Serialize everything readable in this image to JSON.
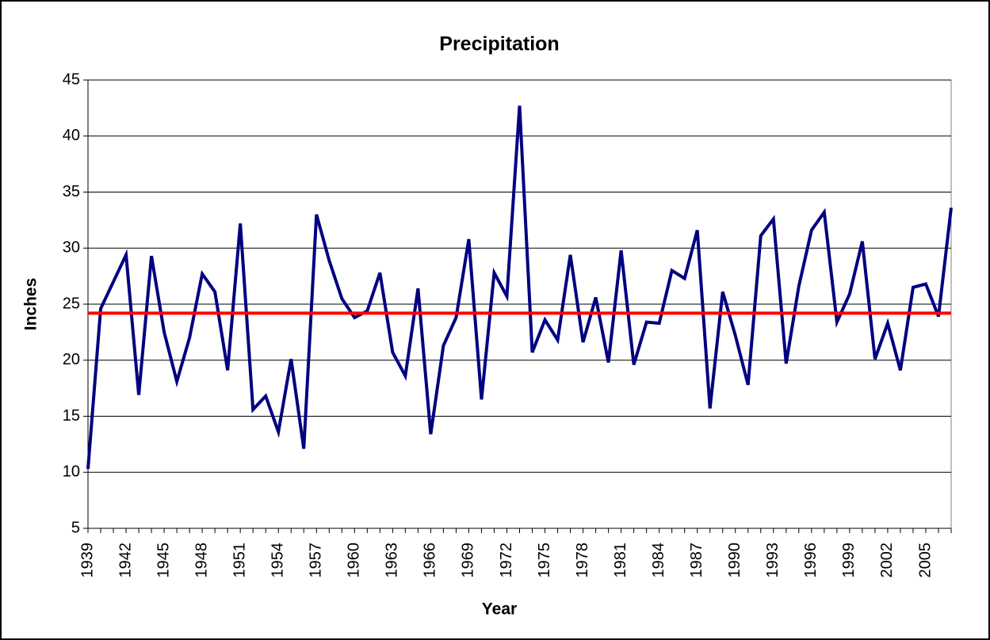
{
  "chart_data": {
    "type": "line",
    "title": "Precipitation",
    "x_label": "Year",
    "y_label": "Inches",
    "categories": [
      "1939",
      null,
      null,
      "1942",
      null,
      null,
      "1945",
      null,
      null,
      "1948",
      null,
      null,
      "1951",
      null,
      null,
      "1954",
      null,
      null,
      "1957",
      null,
      null,
      "1960",
      null,
      null,
      "1963",
      null,
      null,
      "1966",
      null,
      null,
      "1969",
      null,
      null,
      "1972",
      null,
      null,
      "1975",
      null,
      null,
      "1978",
      null,
      null,
      "1981",
      null,
      null,
      "1984",
      null,
      null,
      "1987",
      null,
      null,
      "1990",
      null,
      null,
      "1993",
      null,
      null,
      "1996",
      null,
      null,
      "1999",
      null,
      null,
      "2002",
      null,
      null,
      "2005",
      null,
      null
    ],
    "series": [
      {
        "color": "#000080",
        "values": [
          10.3,
          24.6,
          27.0,
          29.4,
          16.9,
          29.3,
          22.5,
          18.1,
          22.0,
          27.7,
          26.1,
          19.1,
          32.2,
          15.6,
          16.8,
          13.6,
          20.1,
          12.1,
          33.0,
          28.9,
          25.5,
          23.8,
          24.4,
          27.8,
          20.7,
          18.6,
          26.4,
          13.4,
          21.3,
          23.8,
          30.8,
          16.5,
          27.8,
          25.7,
          42.7,
          20.7,
          23.6,
          21.8,
          29.4,
          21.6,
          25.6,
          19.8,
          29.8,
          19.6,
          23.4,
          23.3,
          28.0,
          27.3,
          31.6,
          15.7,
          26.1,
          22.2,
          17.8,
          31.1,
          32.6,
          19.7,
          26.6,
          31.6,
          33.2,
          23.4,
          25.9,
          30.6,
          20.1,
          23.3,
          19.1,
          26.5,
          26.8,
          23.9,
          33.6
        ]
      }
    ],
    "reference_line": {
      "value": 24.2,
      "color": "#ff0000"
    },
    "ylim": [
      5,
      45
    ],
    "yticks": [
      5,
      10,
      15,
      20,
      25,
      30,
      35,
      40,
      45
    ],
    "grid": true
  }
}
